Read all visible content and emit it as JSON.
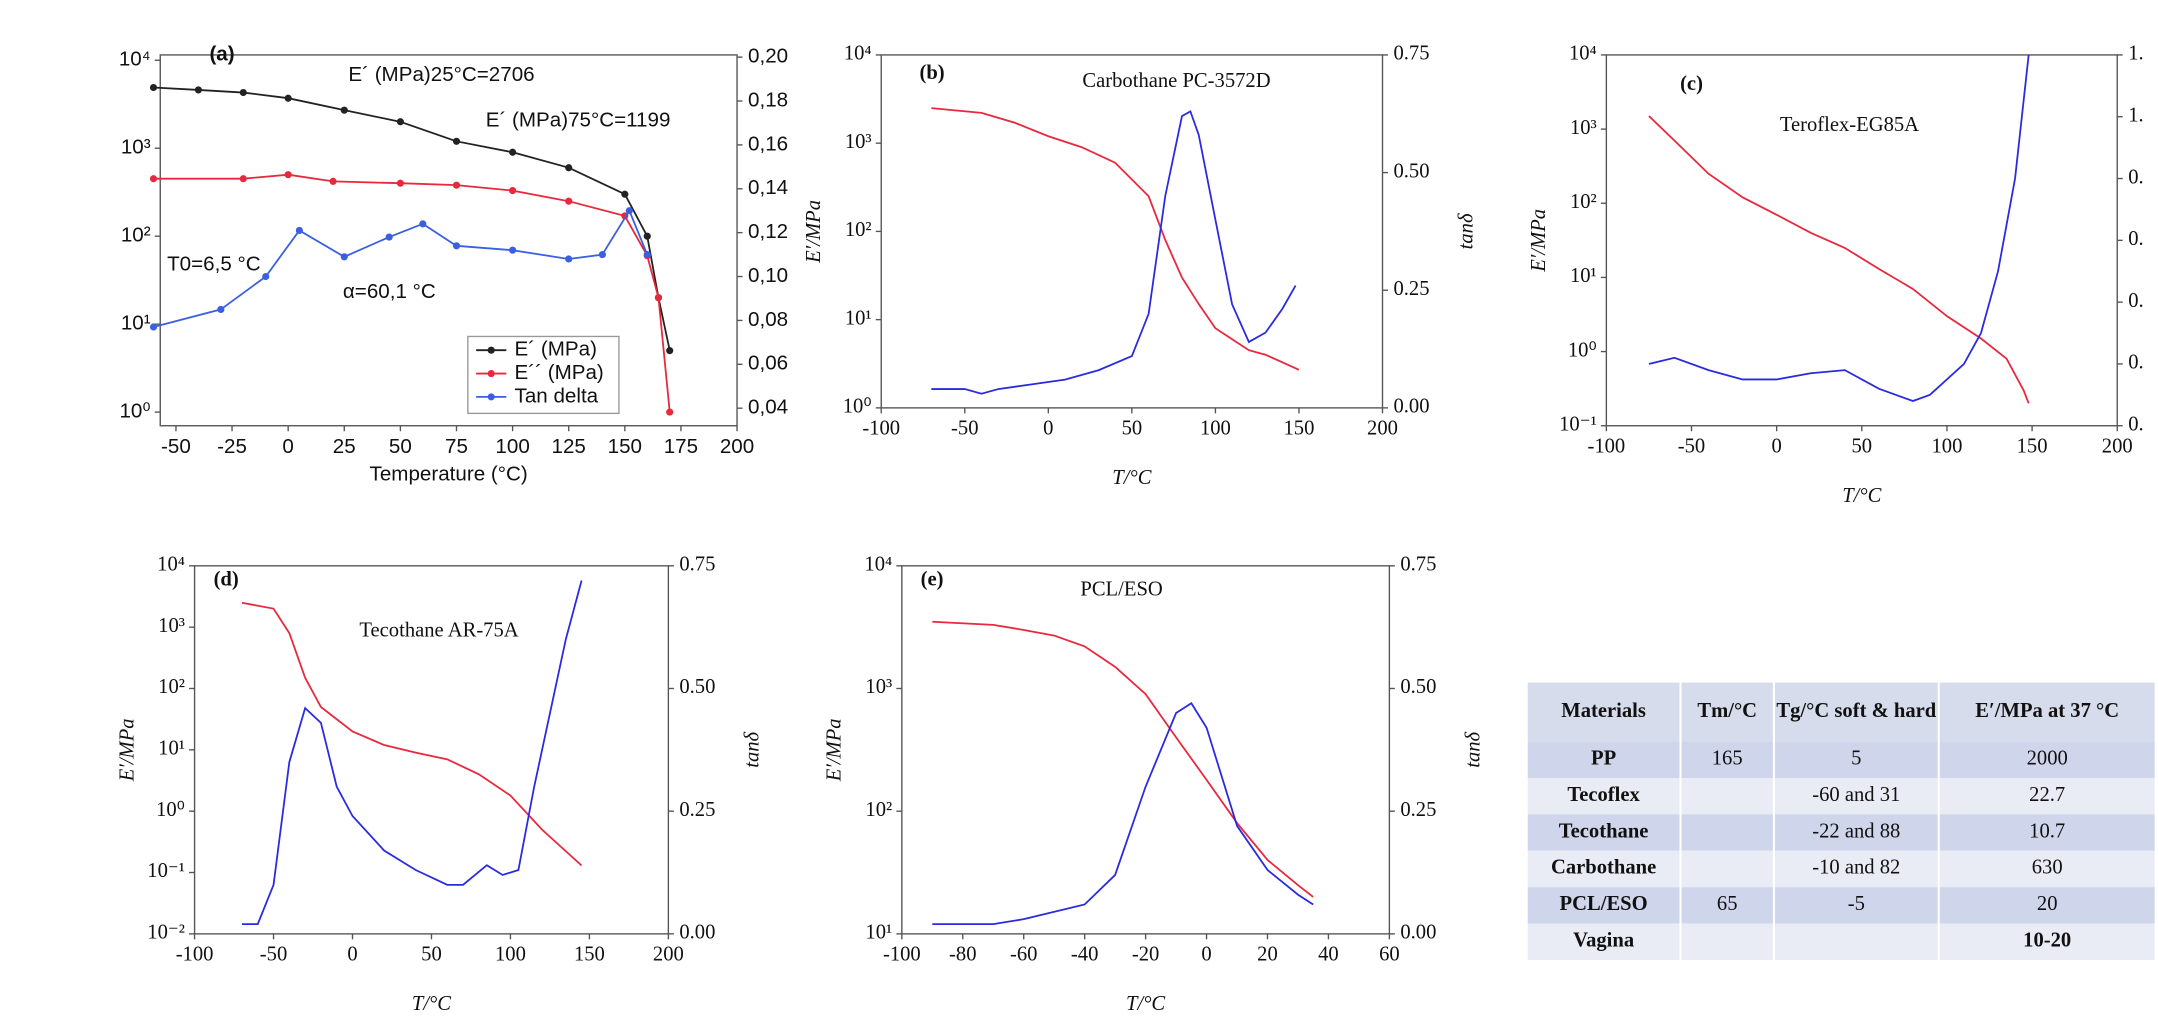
{
  "chart_data": [
    {
      "type": "line",
      "panel": "(a)",
      "xlabel": "Temperature (°C)",
      "xlim": [
        -57,
        200
      ],
      "xticks": [
        -50,
        -25,
        0,
        25,
        50,
        75,
        100,
        125,
        150,
        175,
        200
      ],
      "ylog": true,
      "ylim": [
        0.7,
        11500
      ],
      "yticks": [
        {
          "value": 1,
          "label": "10⁰"
        },
        {
          "value": 10,
          "label": "10¹"
        },
        {
          "value": 100,
          "label": "10²"
        },
        {
          "value": 1000,
          "label": "10³"
        },
        {
          "value": 10000,
          "label": "10⁴"
        }
      ],
      "y2lim": [
        0.032,
        0.201
      ],
      "y2ticks": [
        {
          "value": 0.04,
          "label": "0,04"
        },
        {
          "value": 0.06,
          "label": "0,06"
        },
        {
          "value": 0.08,
          "label": "0,08"
        },
        {
          "value": 0.1,
          "label": "0,10"
        },
        {
          "value": 0.12,
          "label": "0,12"
        },
        {
          "value": 0.14,
          "label": "0,14"
        },
        {
          "value": 0.16,
          "label": "0,16"
        },
        {
          "value": 0.18,
          "label": "0,18"
        },
        {
          "value": 0.2,
          "label": "0,20"
        }
      ],
      "annotations": [
        "E´ (MPa)25°C=2706",
        "E´ (MPa)75°C=1199",
        "T0=6,5 °C",
        "α=60,1 °C"
      ],
      "legend": "lower right",
      "markers": true,
      "series": [
        {
          "name": "E´ (MPa)",
          "color": "#222222",
          "x": [
            -60,
            -40,
            -20,
            0,
            25,
            50,
            75,
            100,
            125,
            150,
            160,
            165,
            170
          ],
          "values": [
            4900,
            4600,
            4300,
            3700,
            2706,
            2000,
            1199,
            900,
            600,
            300,
            100,
            20,
            5
          ]
        },
        {
          "name": "E´´ (MPa)",
          "color": "#e8283c",
          "x": [
            -60,
            -20,
            0,
            20,
            50,
            75,
            100,
            125,
            150,
            160,
            165,
            170
          ],
          "values": [
            450,
            450,
            500,
            420,
            400,
            380,
            330,
            250,
            170,
            60,
            20,
            1
          ]
        },
        {
          "name": "Tan delta",
          "color": "#3a5fe0",
          "axis": "y2",
          "x": [
            -60,
            -30,
            -10,
            5,
            25,
            45,
            60,
            75,
            100,
            125,
            140,
            152,
            160
          ],
          "values": [
            0.077,
            0.085,
            0.1,
            0.121,
            0.109,
            0.118,
            0.124,
            0.114,
            0.112,
            0.108,
            0.11,
            0.13,
            0.11
          ]
        }
      ]
    },
    {
      "type": "line",
      "panel": "(b)",
      "title": "Carbothane PC-3572D",
      "xlabel": "T/°C",
      "ylabel": "E′/MPa",
      "y2label": "tanδ",
      "xlim": [
        -100,
        200
      ],
      "xticks": [
        -100,
        -50,
        0,
        50,
        100,
        150,
        200
      ],
      "ylog": true,
      "ylim": [
        1,
        10000
      ],
      "yticks": [
        {
          "value": 1,
          "label": "10⁰"
        },
        {
          "value": 10,
          "label": "10¹"
        },
        {
          "value": 100,
          "label": "10²"
        },
        {
          "value": 1000,
          "label": "10³"
        },
        {
          "value": 10000,
          "label": "10⁴"
        }
      ],
      "y2lim": [
        0,
        0.75
      ],
      "y2ticks": [
        {
          "value": 0,
          "label": "0.00"
        },
        {
          "value": 0.25,
          "label": "0.25"
        },
        {
          "value": 0.5,
          "label": "0.50"
        },
        0.75
      ],
      "series": [
        {
          "color": "#e8283c",
          "x": [
            -70,
            -40,
            -20,
            0,
            20,
            40,
            60,
            70,
            80,
            90,
            100,
            110,
            120,
            130,
            150
          ],
          "values": [
            2500,
            2200,
            1700,
            1200,
            900,
            600,
            250,
            80,
            30,
            15,
            8,
            6,
            4.5,
            4,
            2.7
          ]
        },
        {
          "color": "#2a2ae0",
          "axis": "y2",
          "x": [
            -70,
            -50,
            -40,
            -30,
            -10,
            10,
            30,
            50,
            60,
            70,
            80,
            85,
            90,
            100,
            110,
            120,
            130,
            140,
            148
          ],
          "values": [
            0.04,
            0.04,
            0.03,
            0.04,
            0.05,
            0.06,
            0.08,
            0.11,
            0.2,
            0.45,
            0.62,
            0.63,
            0.58,
            0.4,
            0.22,
            0.14,
            0.16,
            0.21,
            0.26
          ]
        }
      ]
    },
    {
      "type": "line",
      "panel": "(c)",
      "title": "Teroflex-EG85A",
      "xlabel": "T/°C",
      "ylabel": "E′/MPa",
      "xlim": [
        -100,
        200
      ],
      "xticks": [
        -100,
        -50,
        0,
        50,
        100,
        150,
        200
      ],
      "ylog": true,
      "ylim": [
        0.1,
        10000
      ],
      "yticks": [
        {
          "value": 0.1,
          "label": "10⁻¹"
        },
        {
          "value": 1,
          "label": "10⁰"
        },
        {
          "value": 10,
          "label": "10¹"
        },
        {
          "value": 100,
          "label": "10²"
        },
        {
          "value": 1000,
          "label": "10³"
        },
        {
          "value": 10000,
          "label": "10⁴"
        }
      ],
      "y2lim": [
        0,
        1.2
      ],
      "y2ticks": [
        {
          "value": 0,
          "label": "0."
        },
        {
          "value": 0.2,
          "label": "0."
        },
        {
          "value": 0.4,
          "label": "0."
        },
        {
          "value": 0.6,
          "label": "0."
        },
        {
          "value": 0.8,
          "label": "0."
        },
        {
          "value": 1.0,
          "label": "1."
        },
        {
          "value": 1.2,
          "label": "1."
        }
      ],
      "series": [
        {
          "color": "#e8283c",
          "x": [
            -75,
            -60,
            -40,
            -20,
            0,
            20,
            40,
            60,
            80,
            100,
            120,
            135,
            145,
            148
          ],
          "values": [
            1500,
            700,
            250,
            120,
            70,
            40,
            25,
            13,
            7,
            3,
            1.5,
            0.8,
            0.3,
            0.2
          ]
        },
        {
          "color": "#2a2ae0",
          "axis": "y2",
          "x": [
            -75,
            -60,
            -40,
            -20,
            0,
            20,
            40,
            60,
            80,
            90,
            110,
            120,
            130,
            140,
            148
          ],
          "values": [
            0.2,
            0.22,
            0.18,
            0.15,
            0.15,
            0.17,
            0.18,
            0.12,
            0.08,
            0.1,
            0.2,
            0.3,
            0.5,
            0.8,
            1.2
          ]
        }
      ]
    },
    {
      "type": "line",
      "panel": "(d)",
      "title": "Tecothane AR-75A",
      "xlabel": "T/°C",
      "ylabel": "E′/MPa",
      "y2label": "tanδ",
      "xlim": [
        -100,
        200
      ],
      "xticks": [
        -100,
        -50,
        0,
        50,
        100,
        150,
        200
      ],
      "ylog": true,
      "ylim": [
        0.01,
        10000
      ],
      "yticks": [
        {
          "value": 0.01,
          "label": "10⁻²"
        },
        {
          "value": 0.1,
          "label": "10⁻¹"
        },
        {
          "value": 1,
          "label": "10⁰"
        },
        {
          "value": 10,
          "label": "10¹"
        },
        {
          "value": 100,
          "label": "10²"
        },
        {
          "value": 1000,
          "label": "10³"
        },
        {
          "value": 10000,
          "label": "10⁴"
        }
      ],
      "y2lim": [
        0,
        0.75
      ],
      "y2ticks": [
        {
          "value": 0,
          "label": "0.00"
        },
        {
          "value": 0.25,
          "label": "0.25"
        },
        {
          "value": 0.5,
          "label": "0.50"
        },
        0.75
      ],
      "series": [
        {
          "color": "#e8283c",
          "x": [
            -70,
            -50,
            -40,
            -30,
            -20,
            0,
            20,
            40,
            60,
            80,
            100,
            120,
            145
          ],
          "values": [
            2500,
            2000,
            800,
            150,
            50,
            20,
            12,
            9,
            7,
            4,
            1.8,
            0.5,
            0.13
          ]
        },
        {
          "color": "#2a2ae0",
          "axis": "y2",
          "x": [
            -70,
            -60,
            -50,
            -40,
            -30,
            -20,
            -10,
            0,
            20,
            40,
            60,
            70,
            85,
            95,
            105,
            115,
            125,
            135,
            145
          ],
          "values": [
            0.02,
            0.02,
            0.1,
            0.35,
            0.46,
            0.43,
            0.3,
            0.24,
            0.17,
            0.13,
            0.1,
            0.1,
            0.14,
            0.12,
            0.13,
            0.3,
            0.45,
            0.6,
            0.72
          ]
        }
      ]
    },
    {
      "type": "line",
      "panel": "(e)",
      "title": "PCL/ESO",
      "xlabel": "T/°C",
      "ylabel": "E′/MPa",
      "y2label": "tanδ",
      "xlim": [
        -100,
        60
      ],
      "xticks": [
        -100,
        -80,
        -60,
        -40,
        -20,
        0,
        20,
        40,
        60
      ],
      "ylog": true,
      "ylim": [
        10,
        10000
      ],
      "yticks": [
        {
          "value": 10,
          "label": "10¹"
        },
        {
          "value": 100,
          "label": "10²"
        },
        {
          "value": 1000,
          "label": "10³"
        },
        {
          "value": 10000,
          "label": "10⁴"
        }
      ],
      "y2lim": [
        0,
        0.75
      ],
      "y2ticks": [
        {
          "value": 0,
          "label": "0.00"
        },
        {
          "value": 0.25,
          "label": "0.25"
        },
        {
          "value": 0.5,
          "label": "0.50"
        },
        0.75
      ],
      "series": [
        {
          "color": "#e8283c",
          "x": [
            -90,
            -70,
            -60,
            -50,
            -40,
            -30,
            -20,
            -10,
            0,
            10,
            20,
            30,
            35
          ],
          "values": [
            3500,
            3300,
            3000,
            2700,
            2200,
            1500,
            900,
            400,
            180,
            80,
            40,
            25,
            20
          ]
        },
        {
          "color": "#2a2ae0",
          "axis": "y2",
          "x": [
            -90,
            -70,
            -60,
            -40,
            -30,
            -20,
            -10,
            -5,
            0,
            10,
            20,
            30,
            35
          ],
          "values": [
            0.02,
            0.02,
            0.03,
            0.06,
            0.12,
            0.3,
            0.45,
            0.47,
            0.42,
            0.22,
            0.13,
            0.08,
            0.06
          ]
        }
      ]
    }
  ],
  "table": {
    "header": [
      "Materials",
      "Tm/°C",
      "Tg/°C soft & hard",
      "E′/MPa at 37 °C"
    ],
    "rows": [
      [
        "PP",
        "165",
        "5",
        "2000"
      ],
      [
        "Tecoflex",
        "",
        "-60 and 31",
        "22.7"
      ],
      [
        "Tecothane",
        "",
        "-22 and 88",
        "10.7"
      ],
      [
        "Carbothane",
        "",
        "-10 and 82",
        "630"
      ],
      [
        "PCL/ESO",
        "65",
        "-5",
        "20"
      ],
      [
        "Vagina",
        "",
        "",
        "10-20"
      ]
    ]
  }
}
